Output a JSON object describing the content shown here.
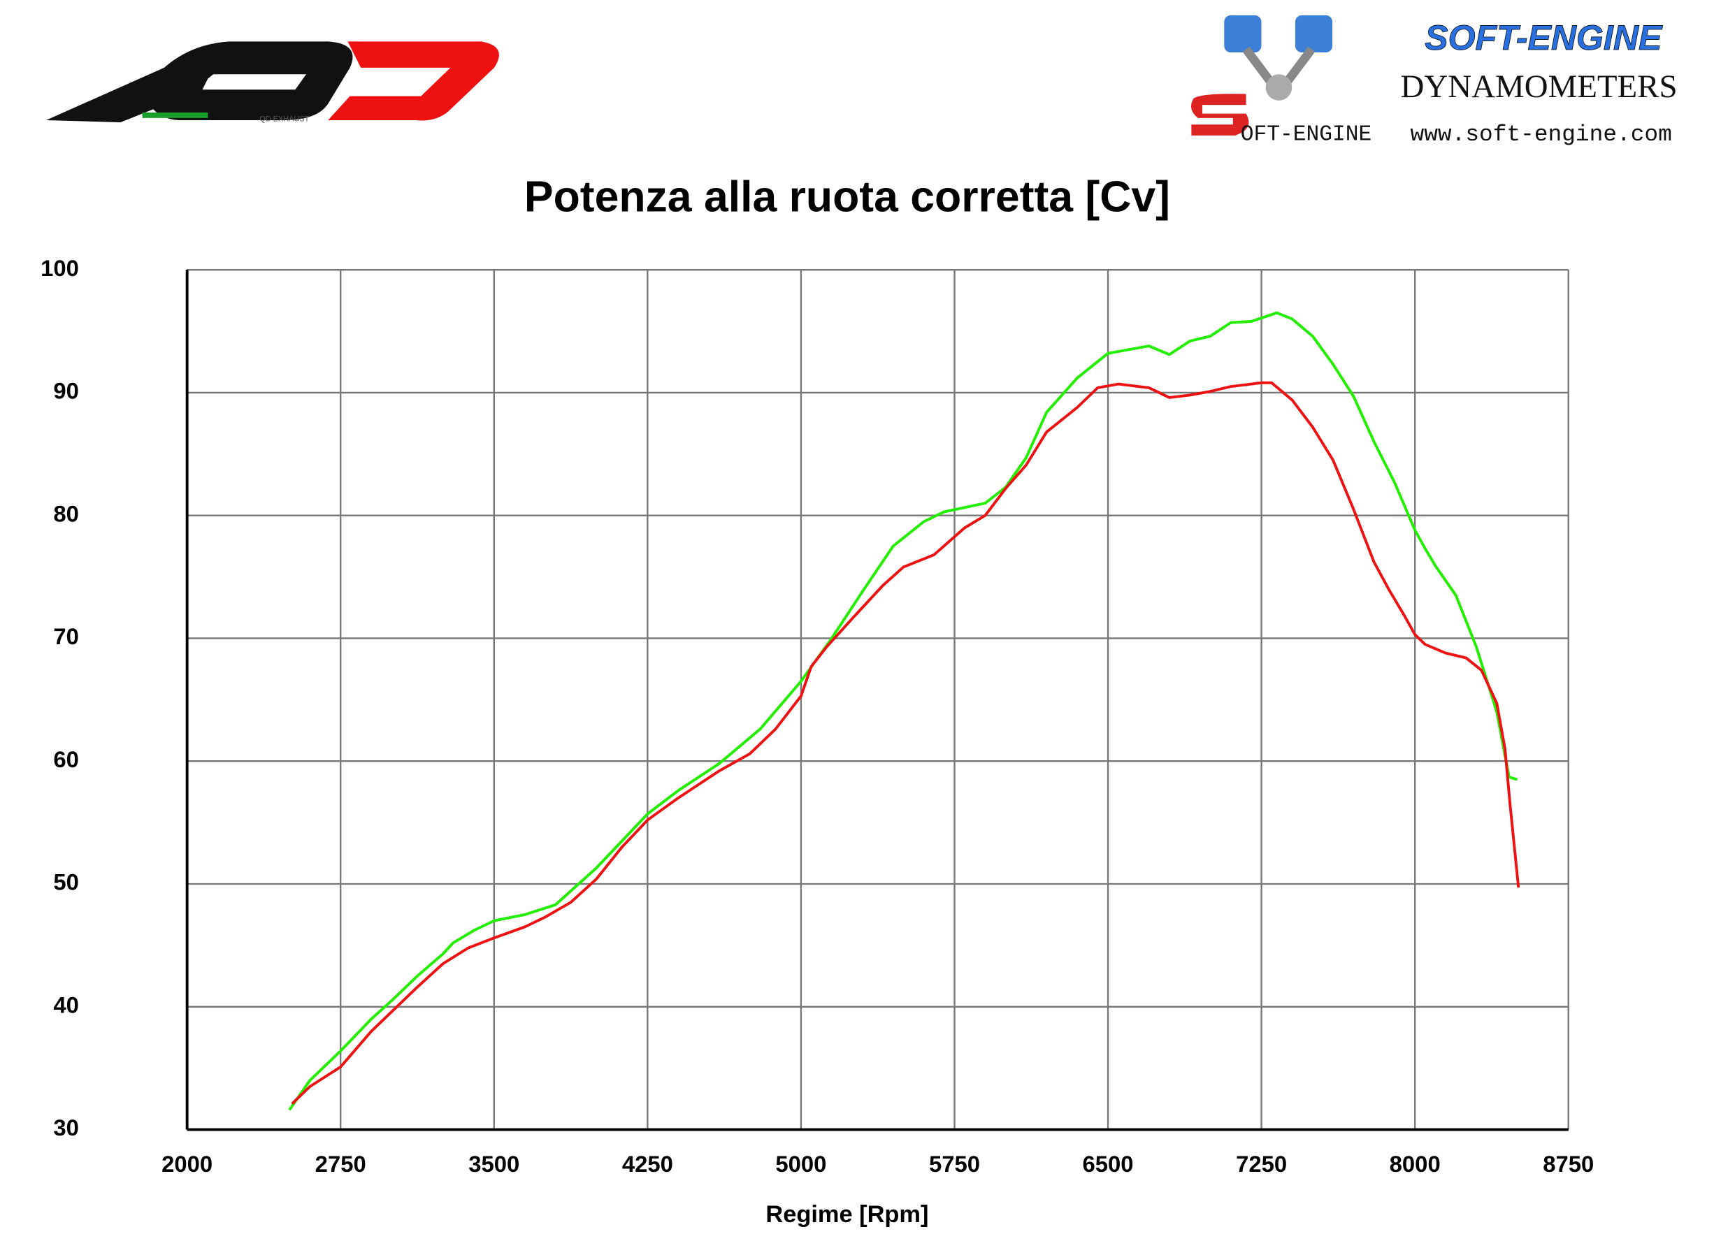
{
  "logos": {
    "brand_left": "QD EXHAUST",
    "brand_right": "SOFT-ENGINE",
    "subtitle_right": "DYNAMOMETERS",
    "website": "www.soft-engine.com",
    "emblem": "OFT-ENGINE"
  },
  "chart_data": {
    "type": "line",
    "title": "Potenza alla ruota corretta [Cv]",
    "x_label": "Regime [Rpm]",
    "xlim": [
      2000,
      8750
    ],
    "xticks": [
      2000,
      2750,
      3500,
      4250,
      5000,
      5750,
      6500,
      7250,
      8000,
      8750
    ],
    "ylim": [
      30,
      100
    ],
    "yticks": [
      30,
      40,
      50,
      60,
      70,
      80,
      90,
      100
    ],
    "grid": true,
    "series": [
      {
        "color": "#22ee00",
        "x": [
          2500,
          2600,
          2750,
          2900,
          3000,
          3125,
          3250,
          3300,
          3400,
          3500,
          3650,
          3800,
          3900,
          4000,
          4125,
          4250,
          4400,
          4600,
          4800,
          5000,
          5150,
          5300,
          5450,
          5600,
          5700,
          5900,
          6000,
          6100,
          6200,
          6350,
          6500,
          6700,
          6800,
          6900,
          7000,
          7100,
          7200,
          7325,
          7400,
          7500,
          7600,
          7700,
          7800,
          7900,
          8000,
          8050,
          8100,
          8200,
          8300,
          8400,
          8460,
          8500
        ],
        "values": [
          31.6,
          34.0,
          36.4,
          39.0,
          40.5,
          42.5,
          44.3,
          45.2,
          46.2,
          47.0,
          47.5,
          48.3,
          49.8,
          51.3,
          53.5,
          55.7,
          57.6,
          59.8,
          62.6,
          66.5,
          70.0,
          73.8,
          77.5,
          79.5,
          80.3,
          81.0,
          82.3,
          84.7,
          88.4,
          91.2,
          93.2,
          93.8,
          93.1,
          94.2,
          94.6,
          95.7,
          95.8,
          96.5,
          96.0,
          94.6,
          92.3,
          89.7,
          86.0,
          82.7,
          78.8,
          77.3,
          75.9,
          73.5,
          69.3,
          64.0,
          58.7,
          58.5
        ]
      },
      {
        "color": "#ee1111",
        "x": [
          2513,
          2600,
          2750,
          2900,
          3000,
          3125,
          3250,
          3375,
          3500,
          3650,
          3750,
          3875,
          4000,
          4125,
          4250,
          4400,
          4600,
          4750,
          4875,
          5000,
          5050,
          5125,
          5250,
          5400,
          5500,
          5650,
          5800,
          5900,
          6000,
          6100,
          6200,
          6350,
          6450,
          6550,
          6700,
          6800,
          6900,
          7000,
          7100,
          7250,
          7300,
          7400,
          7500,
          7600,
          7700,
          7800,
          7875,
          7950,
          8000,
          8050,
          8150,
          8250,
          8325,
          8400,
          8440,
          8464,
          8506
        ],
        "values": [
          32.1,
          33.5,
          35.1,
          38.0,
          39.6,
          41.6,
          43.5,
          44.8,
          45.6,
          46.5,
          47.3,
          48.5,
          50.4,
          53.0,
          55.2,
          57.0,
          59.2,
          60.6,
          62.6,
          65.3,
          67.7,
          69.3,
          71.6,
          74.3,
          75.8,
          76.8,
          79.0,
          80.0,
          82.2,
          84.1,
          86.8,
          88.8,
          90.4,
          90.7,
          90.4,
          89.6,
          89.8,
          90.1,
          90.5,
          90.8,
          90.8,
          89.4,
          87.2,
          84.5,
          80.5,
          76.2,
          73.9,
          71.8,
          70.3,
          69.5,
          68.8,
          68.4,
          67.4,
          64.7,
          61.0,
          56.6,
          49.7
        ]
      }
    ]
  }
}
